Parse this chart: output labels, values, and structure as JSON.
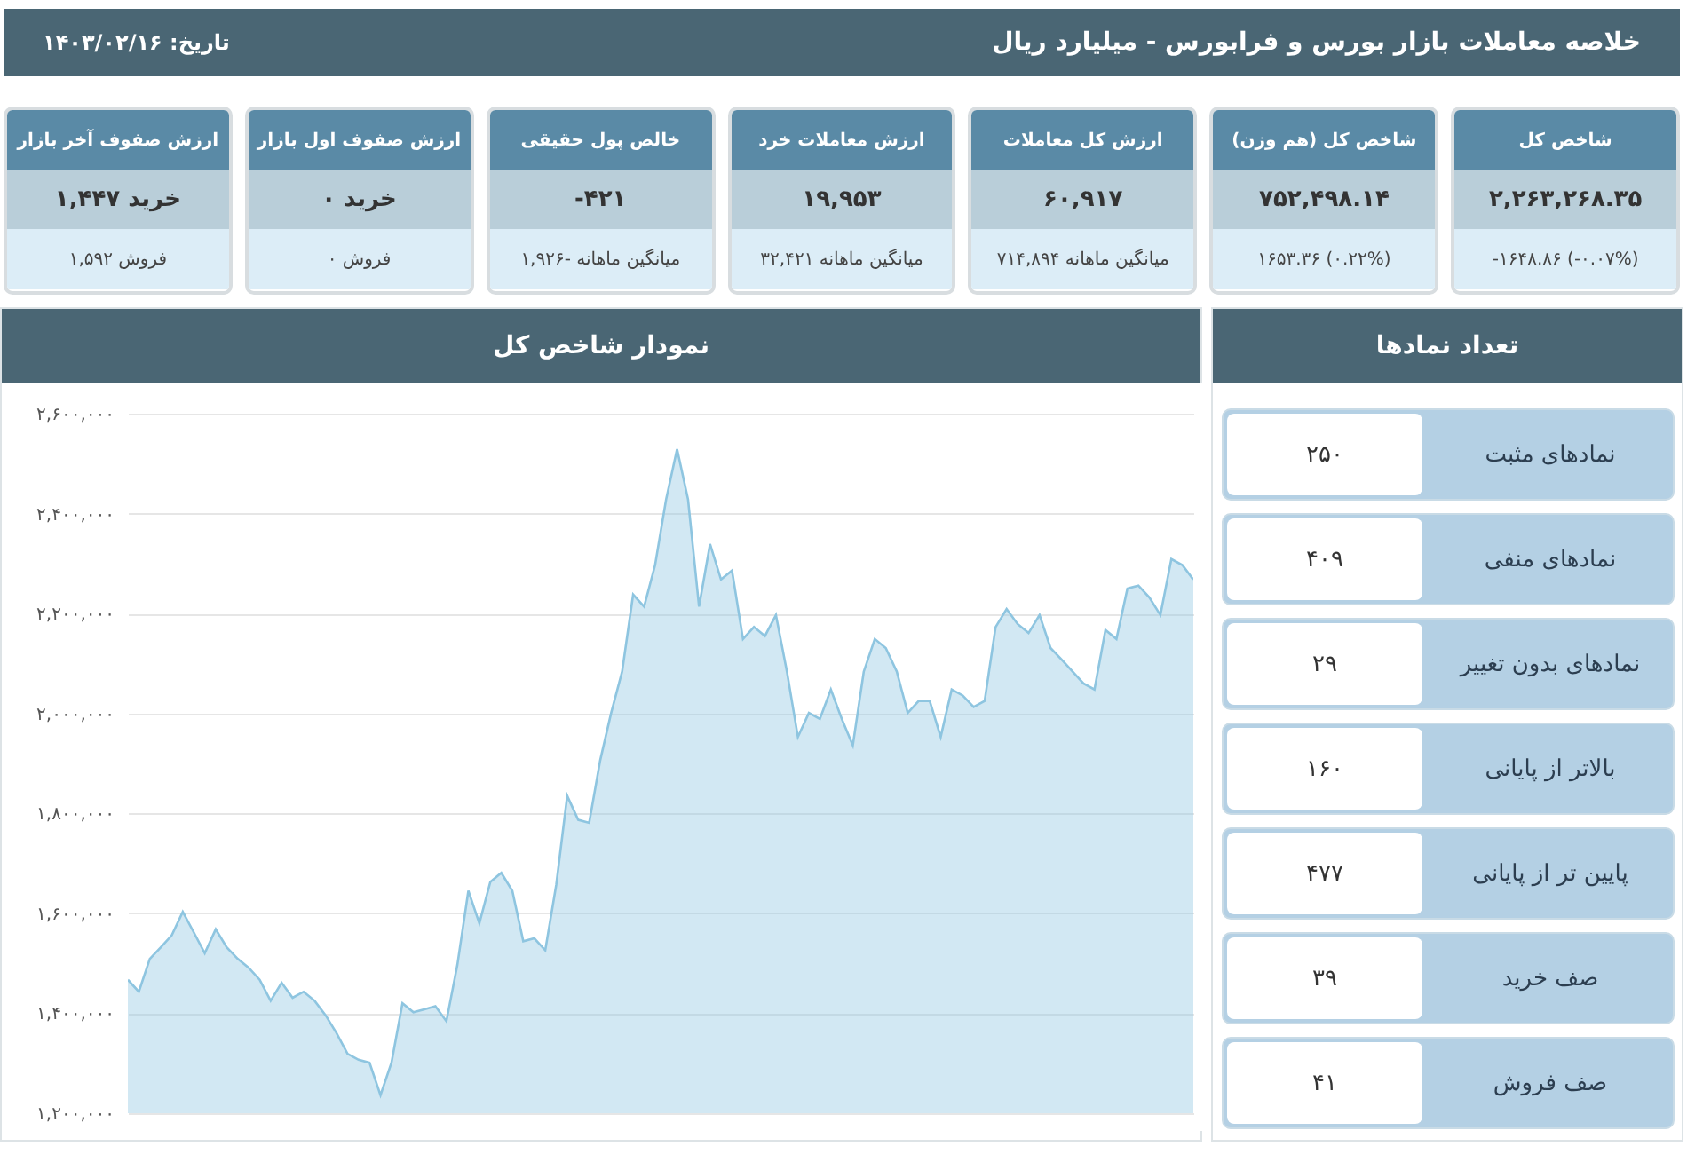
{
  "chart_data": [
    {
      "type": "other",
      "title": "خلاصه معاملات بازار بورس و فرابورس - میلیارد ریال",
      "subtitle": "تاریخ: ۱۴۰۳/۰۲/۱۶",
      "categories": [
        "ارزش صفوف آخر بازار",
        "ارزش صفوف اول بازار",
        "خالص پول حقیقی",
        "ارزش معاملات خرد",
        "ارزش کل معاملات",
        "شاخص کل (هم وزن)",
        "شاخص کل"
      ],
      "annotations": [
        "خرید ۱,۴۴۷",
        "فروش ۱,۵۹۲",
        "خرید ۰",
        "فروش ۰",
        "-۴۲۱",
        "میانگین ماهانه -۱,۹۲۶",
        "۱۹,۹۵۳",
        "میانگین ماهانه ۳۲,۴۲۱",
        "۶۰,۹۱۷",
        "میانگین ماهانه ۷۱۴,۸۹۴",
        "۷۵۲,۴۹۸.۱۴",
        "۱۶۵۳.۳۶ (۰.۲۲%)",
        "۲,۲۶۳,۲۶۸.۳۵",
        "-۱۶۴۸.۸۶ (-۰.۰۷%)"
      ]
    },
    {
      "type": "area",
      "title": "نمودار شاخص کل",
      "grid": "y",
      "tick_labels": "y",
      "categories": [
        null,
        null,
        null,
        null,
        null,
        null,
        null,
        null,
        null,
        null,
        null,
        null,
        null,
        null,
        null,
        null,
        null,
        null,
        null,
        null,
        null,
        null,
        null,
        null,
        null,
        null,
        null,
        null,
        null,
        null,
        null,
        null,
        null,
        null,
        null,
        null,
        null,
        null,
        null,
        null,
        null,
        null,
        null,
        null,
        null,
        null,
        null,
        null,
        null,
        null,
        null,
        null,
        null,
        null,
        null,
        null,
        null,
        null,
        null,
        null,
        null,
        null,
        null,
        null,
        null,
        null,
        null,
        null,
        null,
        null,
        null,
        null,
        null,
        null,
        null,
        null,
        null,
        null,
        null,
        null,
        null,
        null,
        null,
        null,
        null,
        null,
        null,
        null,
        null,
        null,
        null,
        null,
        null,
        null,
        null,
        null,
        null,
        null
      ],
      "series": [
        {
          "color": "#8ec5e0",
          "values": [
            1467000,
            1443000,
            1509000,
            1532000,
            1556000,
            1603000,
            1562000,
            1520000,
            1568000,
            1532000,
            1509000,
            1491000,
            1467000,
            1425000,
            1461000,
            1431000,
            1443000,
            1425000,
            1396000,
            1360000,
            1319000,
            1307000,
            1301000,
            1236000,
            1301000,
            1420000,
            1402000,
            1408000,
            1414000,
            1384000,
            1497000,
            1645000,
            1580000,
            1663000,
            1681000,
            1645000,
            1544000,
            1550000,
            1526000,
            1657000,
            1835000,
            1787000,
            1781000,
            1906000,
            2001000,
            2084000,
            2238000,
            2214000,
            2297000,
            2428000,
            2529000,
            2428000,
            2214000,
            2339000,
            2268000,
            2286000,
            2149000,
            2173000,
            2155000,
            2197000,
            2084000,
            1953000,
            2001000,
            1989000,
            2048000,
            1989000,
            1936000,
            2084000,
            2149000,
            2131000,
            2084000,
            2001000,
            2025000,
            2025000,
            1953000,
            2048000,
            2036000,
            2013000,
            2025000,
            2173000,
            2209000,
            2179000,
            2161000,
            2197000,
            2131000,
            2108000,
            2084000,
            2060000,
            2048000,
            2167000,
            2149000,
            2250000,
            2256000,
            2232000,
            2197000,
            2309000,
            2297000,
            2268000
          ]
        }
      ],
      "ylim": [
        1200000,
        2600000
      ],
      "yticks": [
        {
          "value": 1200000,
          "label": "۱,۲۰۰,۰۰۰"
        },
        {
          "value": 1400000,
          "label": "۱,۴۰۰,۰۰۰"
        },
        {
          "value": 1600000,
          "label": "۱,۶۰۰,۰۰۰"
        },
        {
          "value": 1800000,
          "label": "۱,۸۰۰,۰۰۰"
        },
        {
          "value": 2000000,
          "label": "۲,۰۰۰,۰۰۰"
        },
        {
          "value": 2200000,
          "label": "۲,۲۰۰,۰۰۰"
        },
        {
          "value": 2400000,
          "label": "۲,۴۰۰,۰۰۰"
        },
        {
          "value": 2600000,
          "label": "۲,۶۰۰,۰۰۰"
        }
      ]
    },
    {
      "type": "other",
      "title": "تعداد نمادها",
      "categories": [
        "نمادهای مثبت",
        "نمادهای منفی",
        "نمادهای بدون تغییر",
        "بالاتر از پایانی",
        "پایین تر از پایانی",
        "صف خرید",
        "صف فروش"
      ],
      "annotations": [
        "۲۵۰",
        "۴۰۹",
        "۲۹",
        "۱۶۰",
        "۴۷۷",
        "۳۹",
        "۴۱"
      ]
    }
  ]
}
